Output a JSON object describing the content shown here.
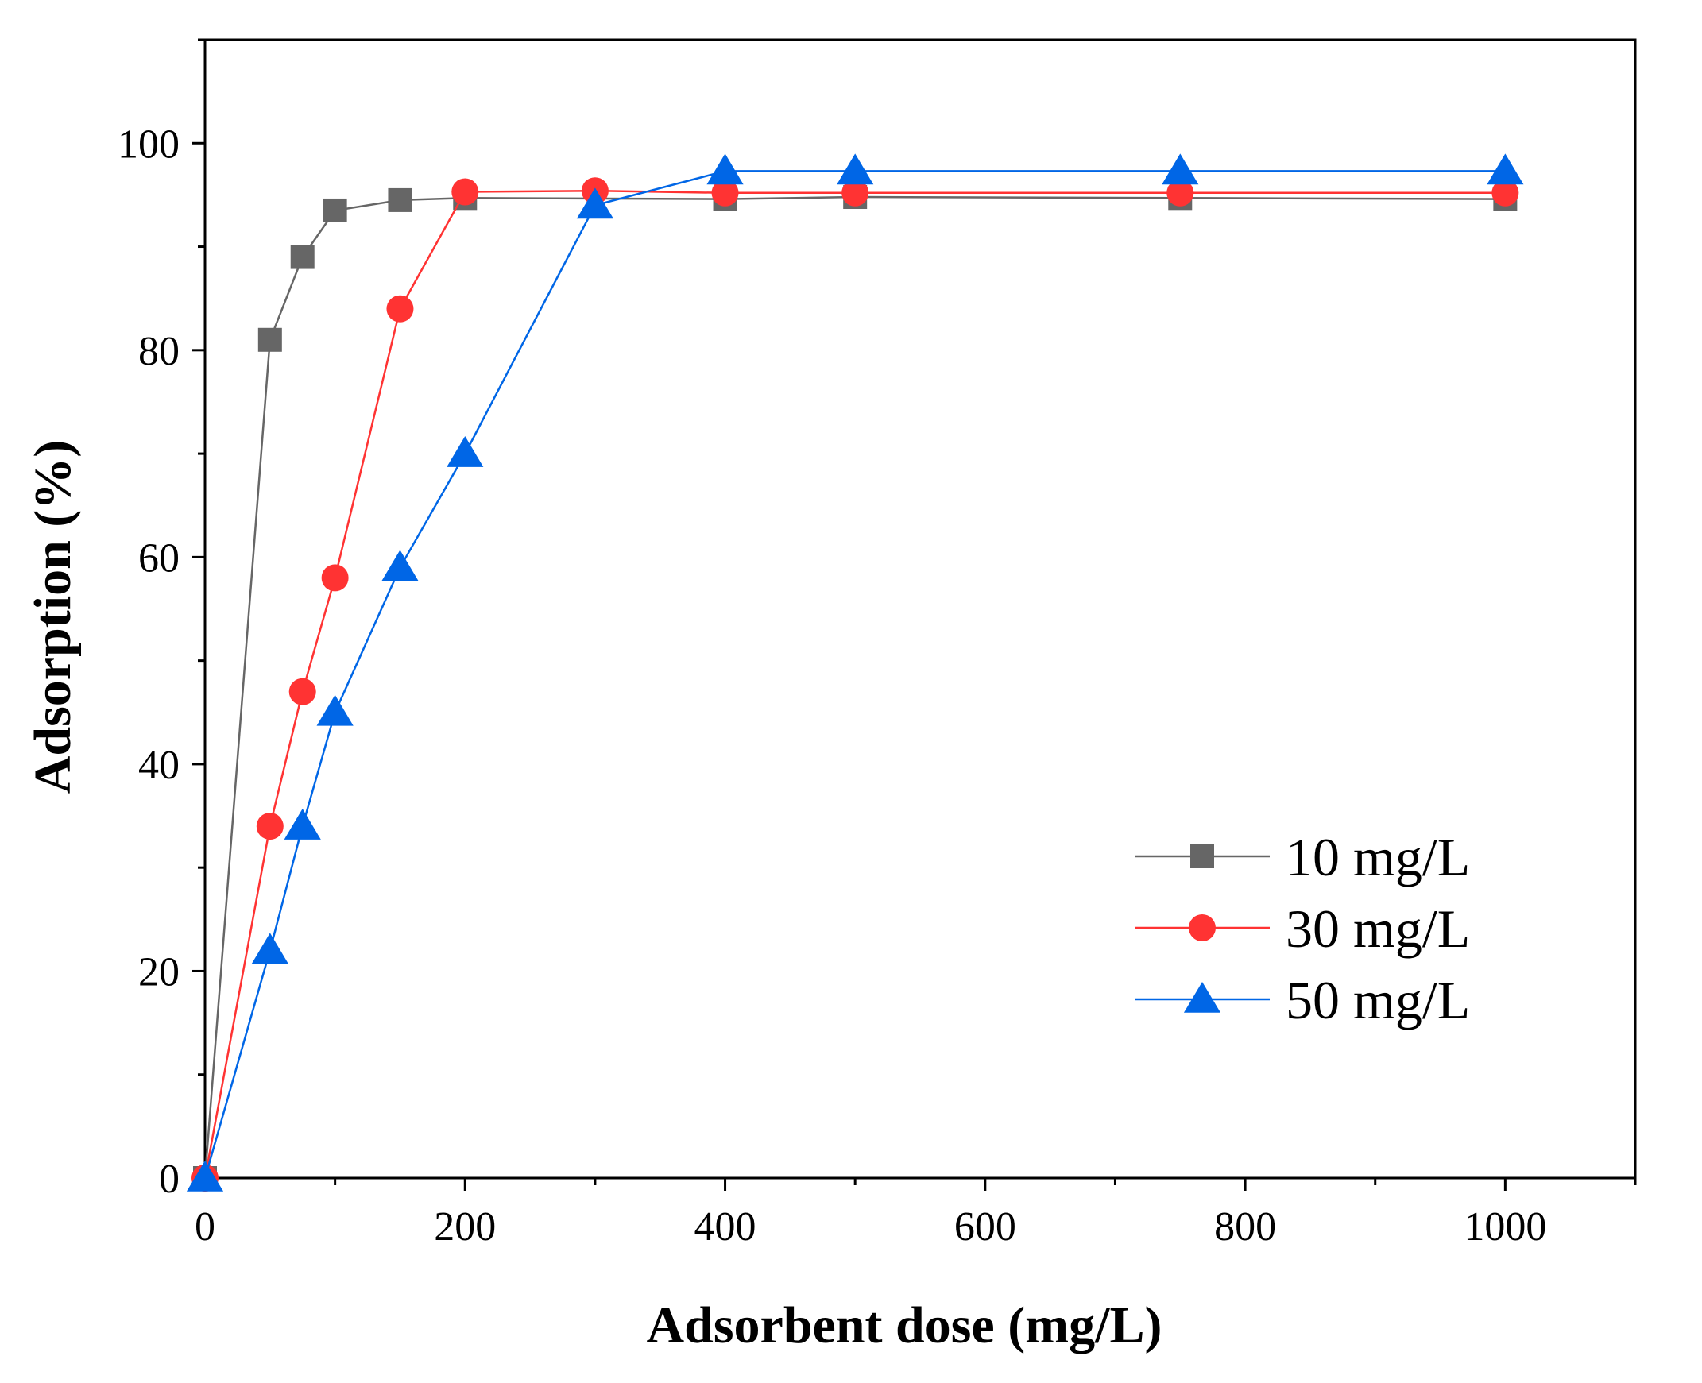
{
  "chart_data": {
    "type": "line",
    "title": "",
    "xlabel": "Adsorbent dose (mg/L)",
    "ylabel": "Adsorption (%)",
    "xlim": [
      0,
      1100
    ],
    "ylim": [
      0,
      110
    ],
    "xticks": [
      0,
      200,
      400,
      600,
      800,
      1000
    ],
    "yticks": [
      0,
      20,
      40,
      60,
      80,
      100
    ],
    "x_minor_step": 100,
    "y_minor_step": 10,
    "grid": false,
    "legend_position": "lower-right",
    "series": [
      {
        "name": "10 mg/L",
        "color": "#666666",
        "marker": "square",
        "x": [
          0,
          50,
          75,
          100,
          150,
          200,
          400,
          500,
          750,
          1000
        ],
        "y": [
          0,
          81,
          89,
          93.5,
          94.5,
          94.7,
          94.6,
          94.8,
          94.7,
          94.6
        ]
      },
      {
        "name": "30 mg/L",
        "color": "#ff3333",
        "marker": "circle",
        "x": [
          0,
          50,
          75,
          100,
          150,
          200,
          300,
          400,
          500,
          750,
          1000
        ],
        "y": [
          0,
          34,
          47,
          58,
          84,
          95.3,
          95.4,
          95.2,
          95.2,
          95.2,
          95.2
        ]
      },
      {
        "name": "50 mg/L",
        "color": "#0066e6",
        "marker": "triangle",
        "x": [
          0,
          50,
          75,
          100,
          150,
          200,
          300,
          400,
          500,
          750,
          1000
        ],
        "y": [
          0,
          22,
          34,
          45,
          59,
          70,
          94,
          97.3,
          97.3,
          97.3,
          97.3
        ]
      }
    ]
  }
}
